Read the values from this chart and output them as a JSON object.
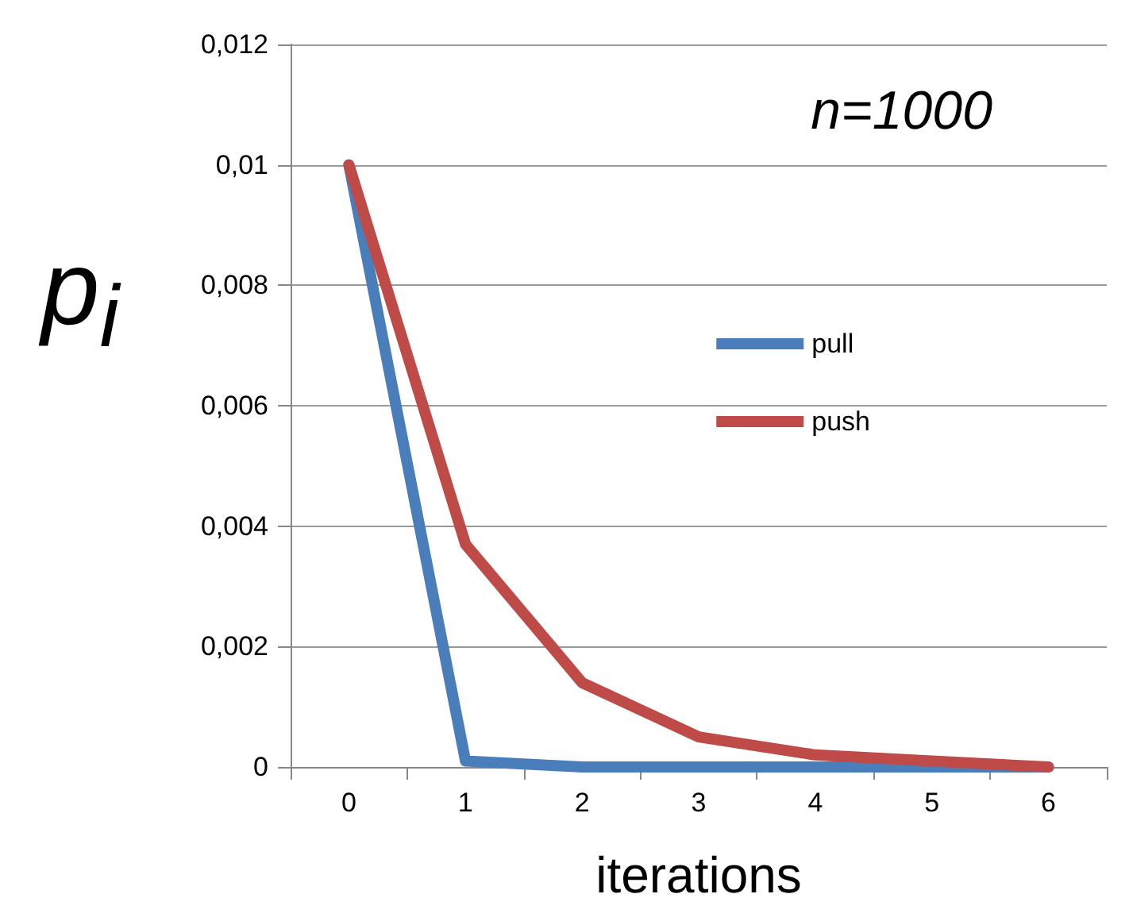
{
  "chart_data": {
    "type": "line",
    "xlabel": "iterations",
    "ylabel": "p$_{i}$",
    "annotations": [
      "n=1000"
    ],
    "categories": [
      "0",
      "1",
      "2",
      "3",
      "4",
      "5",
      "6"
    ],
    "series": [
      {
        "name": "pull",
        "color": "#4a7ebb",
        "values": [
          0.01,
          0.0001,
          0,
          0,
          0,
          0,
          0
        ]
      },
      {
        "name": "push",
        "color": "#be4b48",
        "values": [
          0.01,
          0.0037,
          0.0014,
          0.0005,
          0.0002,
          0.0001,
          0
        ]
      }
    ],
    "ylim": [
      0,
      0.012
    ],
    "yticks": [
      0,
      {
        "value": 0.002,
        "label": "0,002"
      },
      {
        "value": 0.004,
        "label": "0,004"
      },
      {
        "value": 0.006,
        "label": "0,006"
      },
      {
        "value": 0.008,
        "label": "0,008"
      },
      {
        "value": 0.01,
        "label": "0,01"
      },
      {
        "value": 0.012,
        "label": "0,012"
      }
    ],
    "grid": "y",
    "legend": "right",
    "marker": "none",
    "line_style": "solid"
  }
}
